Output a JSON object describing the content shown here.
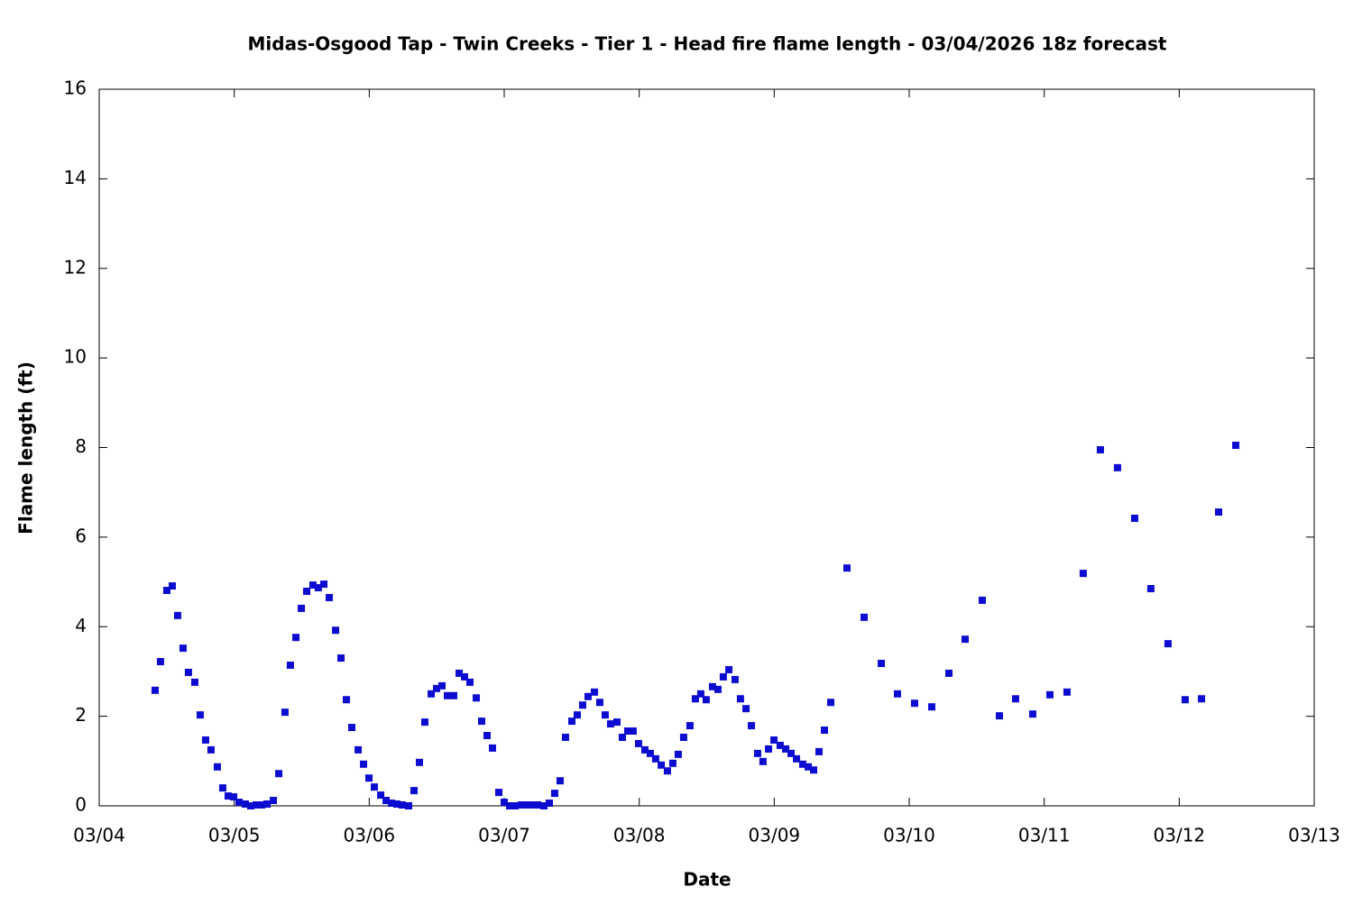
{
  "chart_data": {
    "type": "scatter",
    "title": "Midas-Osgood Tap - Twin Creeks - Tier 1 - Head fire flame length - 03/04/2026 18z forecast",
    "x_label": "Date",
    "y_label": "Flame length (ft)",
    "color": "#0c0cd0",
    "xlim": [
      0,
      9
    ],
    "xticks": [
      {
        "value": 0,
        "label": "03/04"
      },
      {
        "value": 1,
        "label": "03/05"
      },
      {
        "value": 2,
        "label": "03/06"
      },
      {
        "value": 3,
        "label": "03/07"
      },
      {
        "value": 4,
        "label": "03/08"
      },
      {
        "value": 5,
        "label": "03/09"
      },
      {
        "value": 6,
        "label": "03/10"
      },
      {
        "value": 7,
        "label": "03/11"
      },
      {
        "value": 8,
        "label": "03/12"
      },
      {
        "value": 9,
        "label": "03/13"
      }
    ],
    "ylim": [
      0,
      16
    ],
    "yticks": [
      0,
      2,
      4,
      6,
      8,
      10,
      12,
      14,
      16
    ],
    "x": [
      0.414,
      0.454,
      0.501,
      0.541,
      0.581,
      0.621,
      0.661,
      0.708,
      0.748,
      0.788,
      0.828,
      0.875,
      0.915,
      0.955,
      0.996,
      1.036,
      1.082,
      1.122,
      1.163,
      1.203,
      1.243,
      1.29,
      1.33,
      1.376,
      1.416,
      1.457,
      1.497,
      1.537,
      1.583,
      1.623,
      1.664,
      1.704,
      1.751,
      1.791,
      1.831,
      1.871,
      1.918,
      1.958,
      1.998,
      2.038,
      2.085,
      2.125,
      2.165,
      2.205,
      2.245,
      2.292,
      2.332,
      2.372,
      2.412,
      2.459,
      2.499,
      2.539,
      2.579,
      2.626,
      2.666,
      2.706,
      2.746,
      2.793,
      2.833,
      2.873,
      2.913,
      2.96,
      3.0,
      3.04,
      3.08,
      3.127,
      3.167,
      3.207,
      3.247,
      3.294,
      3.334,
      3.374,
      3.414,
      3.454,
      3.501,
      3.541,
      3.581,
      3.621,
      3.668,
      3.708,
      3.748,
      3.788,
      3.835,
      3.875,
      3.915,
      3.955,
      3.995,
      4.042,
      4.082,
      4.122,
      4.163,
      4.209,
      4.249,
      4.289,
      4.329,
      4.376,
      4.416,
      4.456,
      4.496,
      4.543,
      4.583,
      4.623,
      4.664,
      4.71,
      4.75,
      4.791,
      4.831,
      4.877,
      4.917,
      4.958,
      4.998,
      5.044,
      5.085,
      5.125,
      5.165,
      5.211,
      5.252,
      5.292,
      5.332,
      5.372,
      5.419,
      5.539,
      5.666,
      5.793,
      5.913,
      6.04,
      6.167,
      6.294,
      6.414,
      6.541,
      6.668,
      6.788,
      6.915,
      7.042,
      7.169,
      7.289,
      7.416,
      7.543,
      7.67,
      7.79,
      7.917,
      8.044,
      8.165,
      8.292,
      8.419
    ],
    "values": [
      2.58,
      3.22,
      4.81,
      4.91,
      4.25,
      3.52,
      2.98,
      2.76,
      2.03,
      1.47,
      1.25,
      0.87,
      0.4,
      0.22,
      0.2,
      0.08,
      0.04,
      0.0,
      0.02,
      0.02,
      0.04,
      0.12,
      0.72,
      2.09,
      3.14,
      3.76,
      4.41,
      4.79,
      4.93,
      4.87,
      4.95,
      4.65,
      3.92,
      3.3,
      2.37,
      1.75,
      1.25,
      0.93,
      0.62,
      0.42,
      0.24,
      0.12,
      0.06,
      0.04,
      0.02,
      0.0,
      0.34,
      0.97,
      1.87,
      2.5,
      2.62,
      2.68,
      2.46,
      2.46,
      2.96,
      2.88,
      2.76,
      2.41,
      1.89,
      1.57,
      1.29,
      0.3,
      0.08,
      0.0,
      0.0,
      0.02,
      0.02,
      0.02,
      0.02,
      0.0,
      0.06,
      0.28,
      0.56,
      1.53,
      1.89,
      2.03,
      2.25,
      2.44,
      2.54,
      2.31,
      2.03,
      1.83,
      1.87,
      1.53,
      1.67,
      1.67,
      1.39,
      1.25,
      1.17,
      1.05,
      0.91,
      0.78,
      0.95,
      1.15,
      1.53,
      1.79,
      2.39,
      2.5,
      2.37,
      2.66,
      2.6,
      2.88,
      3.04,
      2.82,
      2.39,
      2.17,
      1.79,
      1.17,
      0.99,
      1.27,
      1.47,
      1.35,
      1.27,
      1.17,
      1.05,
      0.93,
      0.87,
      0.8,
      1.21,
      1.69,
      2.31,
      5.31,
      4.21,
      3.18,
      2.5,
      2.29,
      2.21,
      2.96,
      3.72,
      4.59,
      2.01,
      2.39,
      2.05,
      2.48,
      2.54,
      5.19,
      7.95,
      7.55,
      6.42,
      4.85,
      3.62,
      2.37,
      2.39,
      6.56,
      8.05
    ]
  }
}
